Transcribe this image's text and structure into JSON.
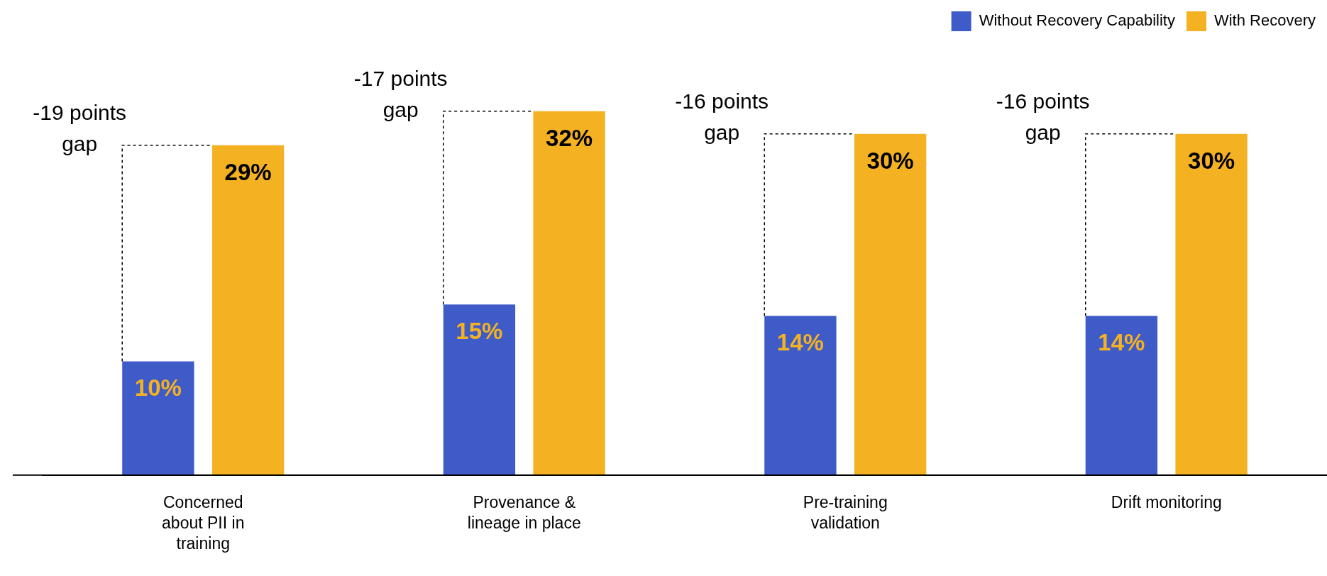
{
  "chart_data": {
    "type": "bar",
    "categories": [
      "Concerned about PII in training",
      "Provenance & lineage in place",
      "Pre-training validation",
      "Drift monitoring"
    ],
    "series": [
      {
        "name": "Without Recovery Capability",
        "color": "#3f5bc8",
        "values": [
          10,
          15,
          14,
          14
        ],
        "value_labels": [
          "10%",
          "15%",
          "14%",
          "14%"
        ]
      },
      {
        "name": "With Recovery",
        "color": "#f4b223",
        "values": [
          29,
          32,
          30,
          30
        ],
        "value_labels": [
          "29%",
          "32%",
          "30%",
          "30%"
        ]
      }
    ],
    "annotations": [
      "-19 points gap",
      "-17 points gap",
      "-16 points gap",
      "-16 points gap"
    ],
    "legend": "top right",
    "grid": false
  }
}
